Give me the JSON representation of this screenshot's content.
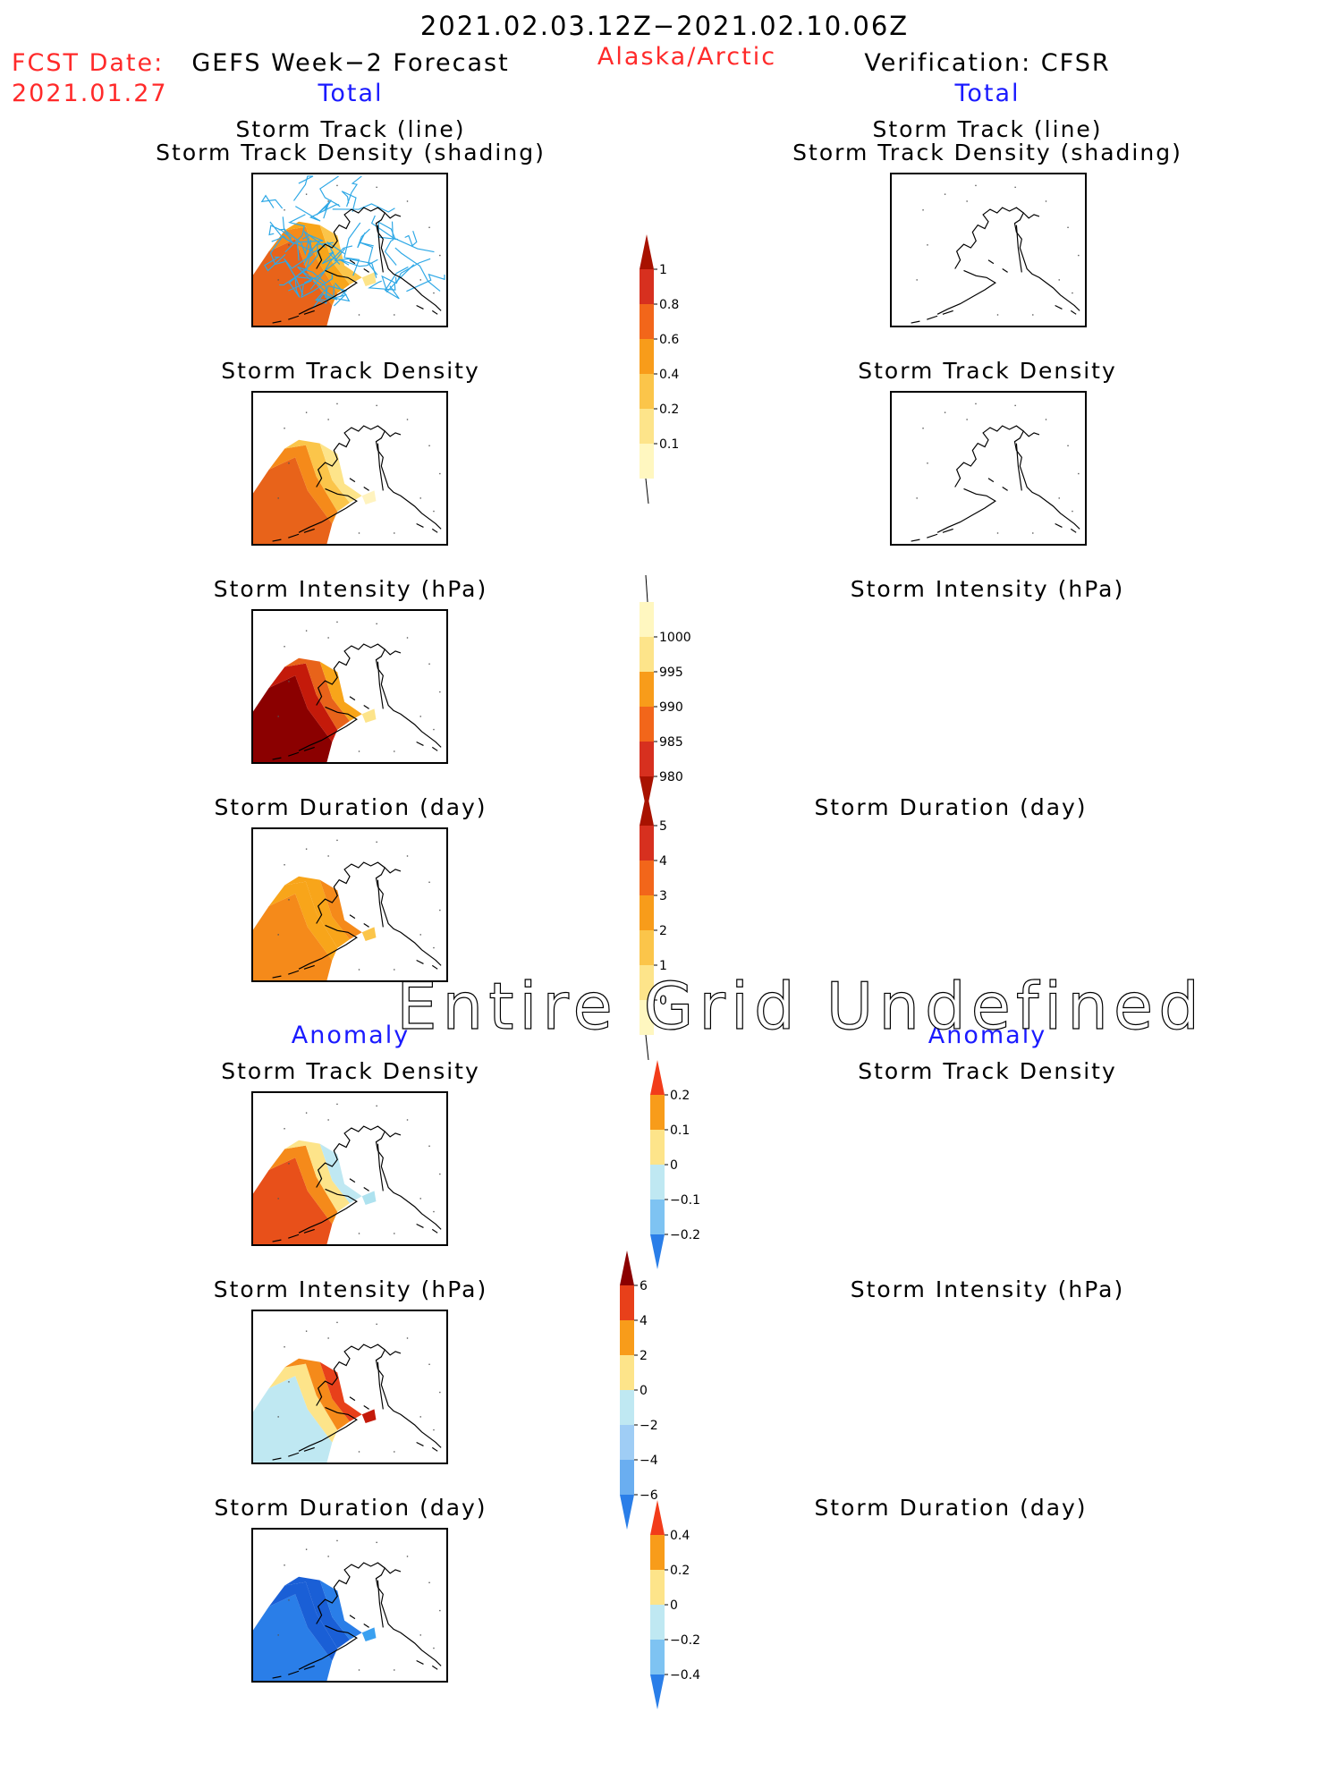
{
  "header": {
    "valid_period": "2021.02.03.12Z−2021.02.10.06Z",
    "fcst_date_label": "FCST Date:",
    "fcst_date_value": "2021.01.27",
    "forecast_title": "GEFS Week−2 Forecast",
    "region": "Alaska/Arctic",
    "verification_title": "Verification: CFSR"
  },
  "sections": {
    "total_label": "Total",
    "anomaly_label": "Anomaly"
  },
  "panels": {
    "track_line": "Storm Track (line)",
    "track_shading": "Storm Track Density (shading)",
    "track_density": "Storm Track Density",
    "intensity": "Storm Intensity (hPa)",
    "duration": "Storm Duration (day)"
  },
  "undefined_message": "Entire Grid Undefined",
  "colors": {
    "title_red": "#ff2a2a",
    "section_blue": "#1a1aff",
    "track_line": "#2ea8e6"
  },
  "colorbars": {
    "total_track_density": [
      "1",
      "0.8",
      "0.6",
      "0.4",
      "0.2",
      "0.1"
    ],
    "total_intensity": [
      "1000",
      "995",
      "990",
      "985",
      "980"
    ],
    "total_duration": [
      "5",
      "4",
      "3",
      "2",
      "1",
      "0"
    ],
    "anom_track_density": [
      "0.2",
      "0.1",
      "0",
      "−0.1",
      "−0.2"
    ],
    "anom_intensity": [
      "6",
      "4",
      "2",
      "0",
      "−2",
      "−4",
      "−6"
    ],
    "anom_duration": [
      "0.4",
      "0.2",
      "0",
      "−0.2",
      "−0.4"
    ]
  }
}
